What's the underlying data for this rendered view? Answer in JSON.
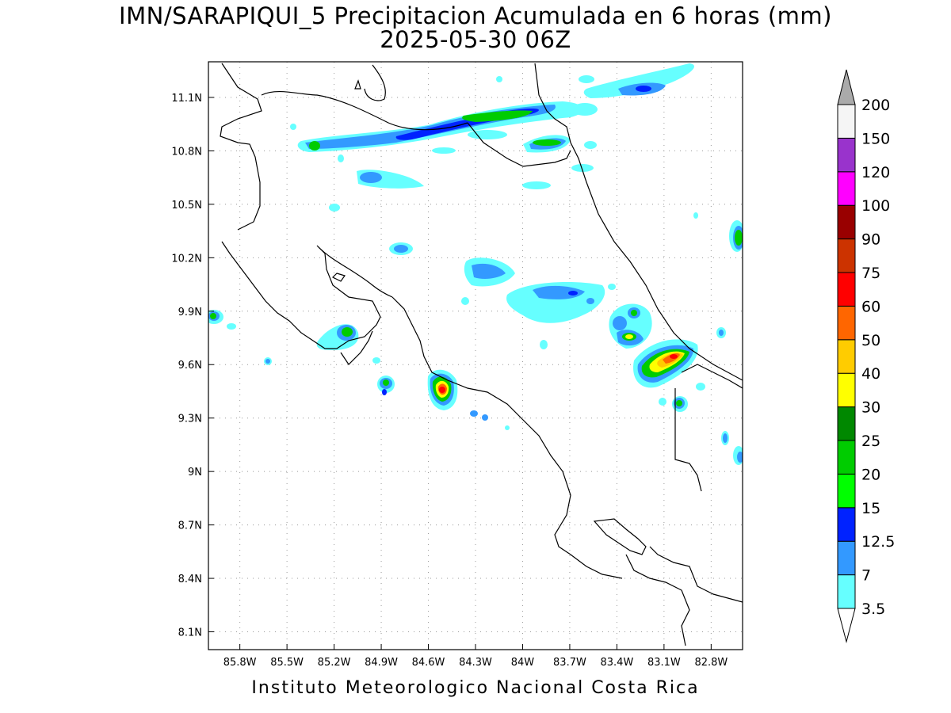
{
  "header": {
    "title": "IMN/SARAPIQUI_5 Precipitacion Acumulada en 6 horas (mm)",
    "subtitle": "2025-05-30 06Z"
  },
  "footer": {
    "credit": "Instituto Meteorologico Nacional Costa Rica"
  },
  "map": {
    "lon_range": [
      -86.0,
      -82.6
    ],
    "lat_range": [
      8.0,
      11.3
    ],
    "lon_ticks": [
      {
        "value": -85.8,
        "label": "85.8W"
      },
      {
        "value": -85.5,
        "label": "85.5W"
      },
      {
        "value": -85.2,
        "label": "85.2W"
      },
      {
        "value": -84.9,
        "label": "84.9W"
      },
      {
        "value": -84.6,
        "label": "84.6W"
      },
      {
        "value": -84.3,
        "label": "84.3W"
      },
      {
        "value": -84.0,
        "label": "84W"
      },
      {
        "value": -83.7,
        "label": "83.7W"
      },
      {
        "value": -83.4,
        "label": "83.4W"
      },
      {
        "value": -83.1,
        "label": "83.1W"
      },
      {
        "value": -82.8,
        "label": "82.8W"
      }
    ],
    "lat_ticks": [
      {
        "value": 11.1,
        "label": "11.1N"
      },
      {
        "value": 10.8,
        "label": "10.8N"
      },
      {
        "value": 10.5,
        "label": "10.5N"
      },
      {
        "value": 10.2,
        "label": "10.2N"
      },
      {
        "value": 9.9,
        "label": "9.9N"
      },
      {
        "value": 9.6,
        "label": "9.6N"
      },
      {
        "value": 9.3,
        "label": "9.3N"
      },
      {
        "value": 9.0,
        "label": "9N"
      },
      {
        "value": 8.7,
        "label": "8.7N"
      },
      {
        "value": 8.4,
        "label": "8.4N"
      },
      {
        "value": 8.1,
        "label": "8.1N"
      }
    ],
    "grid": true,
    "colorbar": {
      "levels": [
        "3.5",
        "7",
        "12.5",
        "15",
        "20",
        "25",
        "30",
        "40",
        "50",
        "60",
        "75",
        "90",
        "100",
        "120",
        "150",
        "200"
      ],
      "colors": [
        "#66ffff",
        "#3399ff",
        "#0022ff",
        "#00ff00",
        "#00cc00",
        "#008800",
        "#ffff00",
        "#ffcc00",
        "#ff6600",
        "#ff0000",
        "#cc3300",
        "#990000",
        "#ff00ff",
        "#9933cc",
        "#f5f5f5",
        "#aaaaaa"
      ]
    }
  }
}
